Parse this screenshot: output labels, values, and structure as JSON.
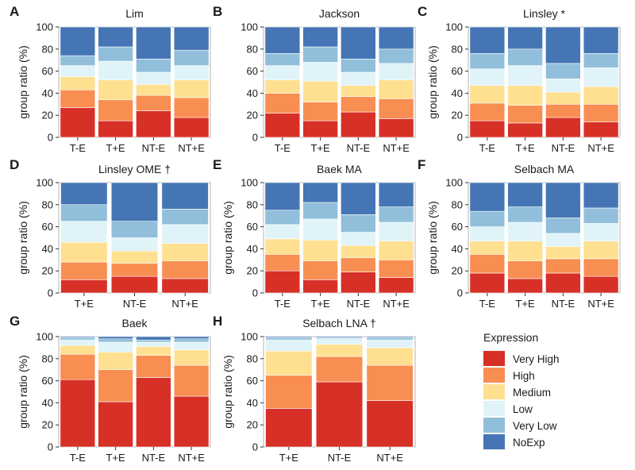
{
  "legend": {
    "title": "Expression",
    "items": [
      {
        "label": "Very High",
        "color": "#d73027"
      },
      {
        "label": "High",
        "color": "#f98e52"
      },
      {
        "label": "Medium",
        "color": "#fee090"
      },
      {
        "label": "Low",
        "color": "#e0f3f8"
      },
      {
        "label": "Very Low",
        "color": "#91bfdb"
      },
      {
        "label": "NoExp",
        "color": "#4575b4"
      }
    ]
  },
  "chart_data": [
    {
      "type": "bar",
      "stacked": true,
      "panel": "A",
      "title": "Lim",
      "ylabel": "group ratio (%)",
      "ylim": [
        0,
        100
      ],
      "yticks": [
        0,
        20,
        40,
        60,
        80,
        100
      ],
      "categories": [
        "T-E",
        "T+E",
        "NT-E",
        "NT+E"
      ],
      "series": [
        {
          "name": "Very High",
          "values": [
            27,
            15,
            24,
            18
          ]
        },
        {
          "name": "High",
          "values": [
            16,
            19,
            14,
            18
          ]
        },
        {
          "name": "Medium",
          "values": [
            12,
            18,
            10,
            16
          ]
        },
        {
          "name": "Low",
          "values": [
            10,
            17,
            11,
            13
          ]
        },
        {
          "name": "Very Low",
          "values": [
            9,
            13,
            12,
            14
          ]
        },
        {
          "name": "NoExp",
          "values": [
            26,
            18,
            29,
            21
          ]
        }
      ]
    },
    {
      "type": "bar",
      "stacked": true,
      "panel": "B",
      "title": "Jackson",
      "ylabel": "",
      "ylim": [
        0,
        100
      ],
      "yticks": [
        0,
        20,
        40,
        60,
        80,
        100
      ],
      "categories": [
        "T-E",
        "T+E",
        "NT-E",
        "NT+E"
      ],
      "series": [
        {
          "name": "Very High",
          "values": [
            22,
            15,
            23,
            17
          ]
        },
        {
          "name": "High",
          "values": [
            18,
            17,
            14,
            18
          ]
        },
        {
          "name": "Medium",
          "values": [
            12,
            19,
            10,
            17
          ]
        },
        {
          "name": "Low",
          "values": [
            13,
            17,
            12,
            15
          ]
        },
        {
          "name": "Very Low",
          "values": [
            11,
            14,
            12,
            13
          ]
        },
        {
          "name": "NoExp",
          "values": [
            24,
            18,
            29,
            20
          ]
        }
      ]
    },
    {
      "type": "bar",
      "stacked": true,
      "panel": "C",
      "title": "Linsley *",
      "ylabel": "group ratio (%)",
      "ylim": [
        0,
        100
      ],
      "yticks": [
        0,
        20,
        40,
        60,
        80,
        100
      ],
      "categories": [
        "T-E",
        "T+E",
        "NT-E",
        "NT+E"
      ],
      "series": [
        {
          "name": "Very High",
          "values": [
            15,
            13,
            18,
            14
          ]
        },
        {
          "name": "High",
          "values": [
            16,
            16,
            12,
            16
          ]
        },
        {
          "name": "Medium",
          "values": [
            16,
            18,
            11,
            16
          ]
        },
        {
          "name": "Low",
          "values": [
            15,
            18,
            12,
            17
          ]
        },
        {
          "name": "Very Low",
          "values": [
            14,
            15,
            14,
            13
          ]
        },
        {
          "name": "NoExp",
          "values": [
            24,
            20,
            33,
            24
          ]
        }
      ]
    },
    {
      "type": "bar",
      "stacked": true,
      "panel": "D",
      "title": "Linsley OME †",
      "ylabel": "group ratio (%)",
      "ylim": [
        0,
        100
      ],
      "yticks": [
        0,
        20,
        40,
        60,
        80,
        100
      ],
      "categories": [
        "T+E",
        "NT-E",
        "NT+E"
      ],
      "series": [
        {
          "name": "Very High",
          "values": [
            12,
            15,
            13
          ]
        },
        {
          "name": "High",
          "values": [
            16,
            12,
            16
          ]
        },
        {
          "name": "Medium",
          "values": [
            18,
            11,
            16
          ]
        },
        {
          "name": "Low",
          "values": [
            19,
            12,
            17
          ]
        },
        {
          "name": "Very Low",
          "values": [
            15,
            15,
            14
          ]
        },
        {
          "name": "NoExp",
          "values": [
            20,
            35,
            24
          ]
        }
      ]
    },
    {
      "type": "bar",
      "stacked": true,
      "panel": "E",
      "title": "Baek MA",
      "ylabel": "group ratio (%)",
      "ylim": [
        0,
        100
      ],
      "yticks": [
        0,
        20,
        40,
        60,
        80,
        100
      ],
      "categories": [
        "T-E",
        "T+E",
        "NT-E",
        "NT+E"
      ],
      "series": [
        {
          "name": "Very High",
          "values": [
            20,
            12,
            19,
            14
          ]
        },
        {
          "name": "High",
          "values": [
            15,
            17,
            13,
            16
          ]
        },
        {
          "name": "Medium",
          "values": [
            14,
            19,
            11,
            17
          ]
        },
        {
          "name": "Low",
          "values": [
            13,
            19,
            12,
            17
          ]
        },
        {
          "name": "Very Low",
          "values": [
            13,
            15,
            16,
            14
          ]
        },
        {
          "name": "NoExp",
          "values": [
            25,
            18,
            29,
            22
          ]
        }
      ]
    },
    {
      "type": "bar",
      "stacked": true,
      "panel": "F",
      "title": "Selbach MA",
      "ylabel": "group ratio (%)",
      "ylim": [
        0,
        100
      ],
      "yticks": [
        0,
        20,
        40,
        60,
        80,
        100
      ],
      "categories": [
        "T-E",
        "T+E",
        "NT-E",
        "NT+E"
      ],
      "series": [
        {
          "name": "Very High",
          "values": [
            18,
            13,
            18,
            15
          ]
        },
        {
          "name": "High",
          "values": [
            17,
            16,
            13,
            16
          ]
        },
        {
          "name": "Medium",
          "values": [
            12,
            18,
            11,
            16
          ]
        },
        {
          "name": "Low",
          "values": [
            13,
            17,
            12,
            16
          ]
        },
        {
          "name": "Very Low",
          "values": [
            14,
            14,
            14,
            14
          ]
        },
        {
          "name": "NoExp",
          "values": [
            26,
            22,
            32,
            23
          ]
        }
      ]
    },
    {
      "type": "bar",
      "stacked": true,
      "panel": "G",
      "title": "Baek",
      "ylabel": "group ratio (%)",
      "ylim": [
        0,
        100
      ],
      "yticks": [
        0,
        20,
        40,
        60,
        80,
        100
      ],
      "categories": [
        "T-E",
        "T+E",
        "NT-E",
        "NT+E"
      ],
      "series": [
        {
          "name": "Very High",
          "values": [
            61,
            41,
            63,
            46
          ]
        },
        {
          "name": "High",
          "values": [
            23,
            29,
            20,
            28
          ]
        },
        {
          "name": "Medium",
          "values": [
            8,
            16,
            8,
            14
          ]
        },
        {
          "name": "Low",
          "values": [
            5,
            9,
            4,
            7
          ]
        },
        {
          "name": "Very Low",
          "values": [
            2,
            3,
            2,
            3
          ]
        },
        {
          "name": "NoExp",
          "values": [
            1,
            2,
            3,
            2
          ]
        }
      ]
    },
    {
      "type": "bar",
      "stacked": true,
      "panel": "H",
      "title": "Selbach LNA †",
      "ylabel": "group ratio (%)",
      "ylim": [
        0,
        100
      ],
      "yticks": [
        0,
        20,
        40,
        60,
        80,
        100
      ],
      "categories": [
        "T+E",
        "NT-E",
        "NT+E"
      ],
      "series": [
        {
          "name": "Very High",
          "values": [
            35,
            59,
            42
          ]
        },
        {
          "name": "High",
          "values": [
            30,
            23,
            32
          ]
        },
        {
          "name": "Medium",
          "values": [
            22,
            11,
            16
          ]
        },
        {
          "name": "Low",
          "values": [
            10,
            5,
            7
          ]
        },
        {
          "name": "Very Low",
          "values": [
            2,
            1,
            2
          ]
        },
        {
          "name": "NoExp",
          "values": [
            1,
            1,
            1
          ]
        }
      ]
    }
  ]
}
